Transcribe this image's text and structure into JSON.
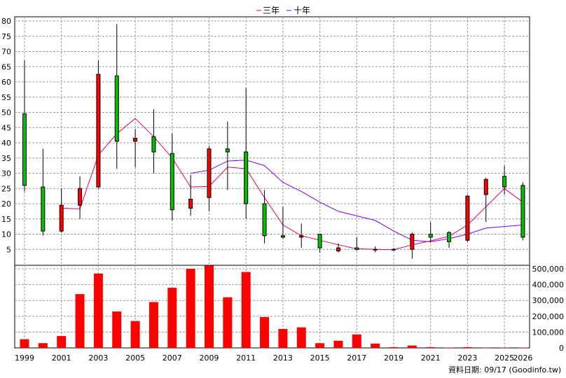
{
  "chart_data": {
    "type": "candlestick",
    "legend": {
      "placement": "top-center",
      "items": [
        {
          "label": "三年",
          "color": "#e0006a"
        },
        {
          "label": "十年",
          "color": "#8000ff"
        }
      ]
    },
    "up_color": "#00c000",
    "down_color": "#ff0000",
    "grid": true,
    "x_tick_labels": [
      "1999",
      "2001",
      "2003",
      "2005",
      "2007",
      "2009",
      "2011",
      "2013",
      "2015",
      "2017",
      "2019",
      "2021",
      "2023",
      "2025",
      "2026"
    ],
    "price_axis": {
      "min": 0,
      "max": 80,
      "ticks": [
        5,
        10,
        15,
        20,
        25,
        30,
        35,
        40,
        45,
        50,
        55,
        60,
        65,
        70,
        75,
        80
      ]
    },
    "volume_axis": {
      "min": 0,
      "max": 500000,
      "ticks": [
        0,
        100000,
        200000,
        300000,
        400000,
        500000
      ],
      "tick_labels": [
        "0",
        "100,000",
        "200,000",
        "300,000",
        "400,000",
        "500,000"
      ]
    },
    "years": [
      1999,
      2000,
      2001,
      2002,
      2003,
      2004,
      2005,
      2006,
      2007,
      2008,
      2009,
      2010,
      2011,
      2012,
      2013,
      2014,
      2015,
      2016,
      2017,
      2018,
      2019,
      2020,
      2021,
      2022,
      2023,
      2024,
      2025,
      2026
    ],
    "candles": [
      {
        "year": 1999,
        "open": 26,
        "high": 67,
        "low": 24,
        "close": 49.5
      },
      {
        "year": 2000,
        "open": 11,
        "high": 38,
        "low": 9.5,
        "close": 25.5
      },
      {
        "year": 2001,
        "open": 19.5,
        "high": 25,
        "low": 10.5,
        "close": 11
      },
      {
        "year": 2002,
        "open": 25,
        "high": 29,
        "low": 15,
        "close": 19.5
      },
      {
        "year": 2003,
        "open": 62.5,
        "high": 67,
        "low": 25,
        "close": 25.5
      },
      {
        "year": 2004,
        "open": 40.5,
        "high": 79,
        "low": 31.5,
        "close": 62
      },
      {
        "year": 2005,
        "open": 41.5,
        "high": 44.5,
        "low": 32,
        "close": 40.5
      },
      {
        "year": 2006,
        "open": 37,
        "high": 51,
        "low": 30,
        "close": 42
      },
      {
        "year": 2007,
        "open": 18,
        "high": 43,
        "low": 14.5,
        "close": 36.5
      },
      {
        "year": 2008,
        "open": 21.5,
        "high": 29.5,
        "low": 16,
        "close": 18.5
      },
      {
        "year": 2009,
        "open": 38,
        "high": 39,
        "low": 17.5,
        "close": 22
      },
      {
        "year": 2010,
        "open": 37,
        "high": 47,
        "low": 24.5,
        "close": 38
      },
      {
        "year": 2011,
        "open": 20,
        "high": 58,
        "low": 15,
        "close": 37
      },
      {
        "year": 2012,
        "open": 9.5,
        "high": 24.5,
        "low": 7,
        "close": 20
      },
      {
        "year": 2013,
        "open": 9,
        "high": 19,
        "low": 8.5,
        "close": 9.5
      },
      {
        "year": 2014,
        "open": 9.5,
        "high": 13.5,
        "low": 5.5,
        "close": 9
      },
      {
        "year": 2015,
        "open": 5.5,
        "high": 10,
        "low": 4,
        "close": 10
      },
      {
        "year": 2016,
        "open": 5.5,
        "high": 7,
        "low": 4,
        "close": 4.5
      },
      {
        "year": 2017,
        "open": 5,
        "high": 9,
        "low": 4.5,
        "close": 5.5
      },
      {
        "year": 2018,
        "open": 5,
        "high": 6,
        "low": 4,
        "close": 5
      },
      {
        "year": 2019,
        "open": 4.8,
        "high": 5.5,
        "low": 4.5,
        "close": 5
      },
      {
        "year": 2020,
        "open": 10,
        "high": 10.5,
        "low": 2,
        "close": 5
      },
      {
        "year": 2021,
        "open": 9,
        "high": 14,
        "low": 7.5,
        "close": 10
      },
      {
        "year": 2022,
        "open": 7.5,
        "high": 11,
        "low": 5.5,
        "close": 10.5
      },
      {
        "year": 2023,
        "open": 22.5,
        "high": 23,
        "low": 7.5,
        "close": 8
      },
      {
        "year": 2024,
        "open": 28,
        "high": 28.5,
        "low": 14,
        "close": 23
      },
      {
        "year": 2025,
        "open": 25.5,
        "high": 32.5,
        "low": 23,
        "close": 29
      },
      {
        "year": 2026,
        "open": 9,
        "high": 27,
        "low": 8,
        "close": 26
      }
    ],
    "ma3": [
      null,
      null,
      18.5,
      18.3,
      36,
      43,
      48,
      42,
      35,
      25.5,
      25.7,
      32,
      31.5,
      22,
      13,
      9.5,
      8,
      6.5,
      5.2,
      5,
      4.9,
      6.5,
      7.8,
      9.3,
      13,
      19,
      25,
      20.5
    ],
    "ma10": [
      null,
      null,
      null,
      null,
      null,
      null,
      null,
      null,
      null,
      30,
      31,
      34,
      34.3,
      32.5,
      27,
      24,
      20.5,
      17.5,
      16,
      14.5,
      11,
      8,
      7.5,
      8.5,
      10,
      12,
      12.5,
      13
    ],
    "volume": [
      55000,
      30000,
      75000,
      340000,
      470000,
      230000,
      170000,
      290000,
      380000,
      500000,
      520000,
      320000,
      480000,
      195000,
      120000,
      130000,
      30000,
      45000,
      85000,
      27000,
      5000,
      15000,
      5000,
      2000,
      5000,
      1000,
      2000,
      2000
    ],
    "source_label": "資料日期: 09/17 (Goodinfo.tw)"
  }
}
